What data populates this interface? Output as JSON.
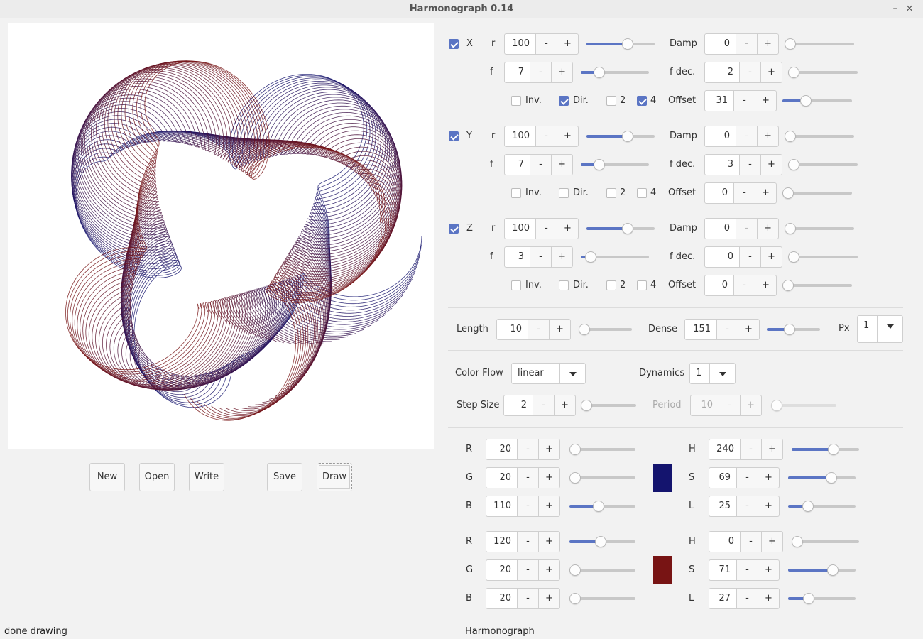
{
  "window": {
    "title": "Harmonograph 0.14",
    "minimize": "–",
    "close": "×"
  },
  "buttons": {
    "new": "New",
    "open": "Open",
    "write": "Write",
    "save": "Save",
    "draw": "Draw"
  },
  "status": {
    "left": "done drawing",
    "right": "Harmonograph"
  },
  "common": {
    "r": "r",
    "f": "f",
    "damp": "Damp",
    "fdec": "f dec.",
    "offset": "Offset",
    "inv": "Inv.",
    "dir": "Dir.",
    "two": "2",
    "four": "4",
    "minus": "-",
    "plus": "+"
  },
  "axes": [
    {
      "name": "X",
      "enabled": true,
      "r": "100",
      "r_level": 0.62,
      "damp": "0",
      "damp_level": 0.0,
      "f": "7",
      "f_level": 0.22,
      "fdec": "2",
      "fdec_level": 0.0,
      "inv": false,
      "dir": true,
      "two": false,
      "four": true,
      "offset": "31",
      "offset_level": 0.3
    },
    {
      "name": "Y",
      "enabled": true,
      "r": "100",
      "r_level": 0.62,
      "damp": "0",
      "damp_level": 0.0,
      "f": "7",
      "f_level": 0.22,
      "fdec": "3",
      "fdec_level": 0.0,
      "inv": false,
      "dir": false,
      "two": false,
      "four": false,
      "offset": "0",
      "offset_level": 0.0
    },
    {
      "name": "Z",
      "enabled": true,
      "r": "100",
      "r_level": 0.62,
      "damp": "0",
      "damp_level": 0.0,
      "f": "3",
      "f_level": 0.08,
      "fdec": "0",
      "fdec_level": 0.0,
      "inv": false,
      "dir": false,
      "two": false,
      "four": false,
      "offset": "0",
      "offset_level": 0.0
    }
  ],
  "global": {
    "length_label": "Length",
    "length": "10",
    "length_level": 0.0,
    "dense_label": "Dense",
    "dense": "151",
    "dense_level": 0.4,
    "px_label": "Px",
    "px": "1"
  },
  "colorflow": {
    "label": "Color Flow",
    "value": "linear",
    "dynamics_label": "Dynamics",
    "dynamics": "1",
    "step_label": "Step Size",
    "step": "2",
    "step_level": 0.0,
    "period_label": "Period",
    "period": "10",
    "period_level": 0.0
  },
  "colors": [
    {
      "R": "20",
      "R_level": 0.0,
      "G": "20",
      "G_level": 0.0,
      "B": "110",
      "B_level": 0.43,
      "H": "240",
      "H_level": 0.64,
      "S": "69",
      "S_level": 0.67,
      "L": "25",
      "L_level": 0.25,
      "swatch": "#14146e"
    },
    {
      "R": "120",
      "R_level": 0.47,
      "G": "20",
      "G_level": 0.0,
      "B": "20",
      "B_level": 0.0,
      "H": "0",
      "H_level": 0.0,
      "S": "71",
      "S_level": 0.69,
      "L": "27",
      "L_level": 0.27,
      "swatch": "#781414"
    }
  ],
  "labels": {
    "R": "R",
    "G": "G",
    "B": "B",
    "H": "H",
    "S": "S",
    "L": "L"
  },
  "accent": "#5b75c4"
}
